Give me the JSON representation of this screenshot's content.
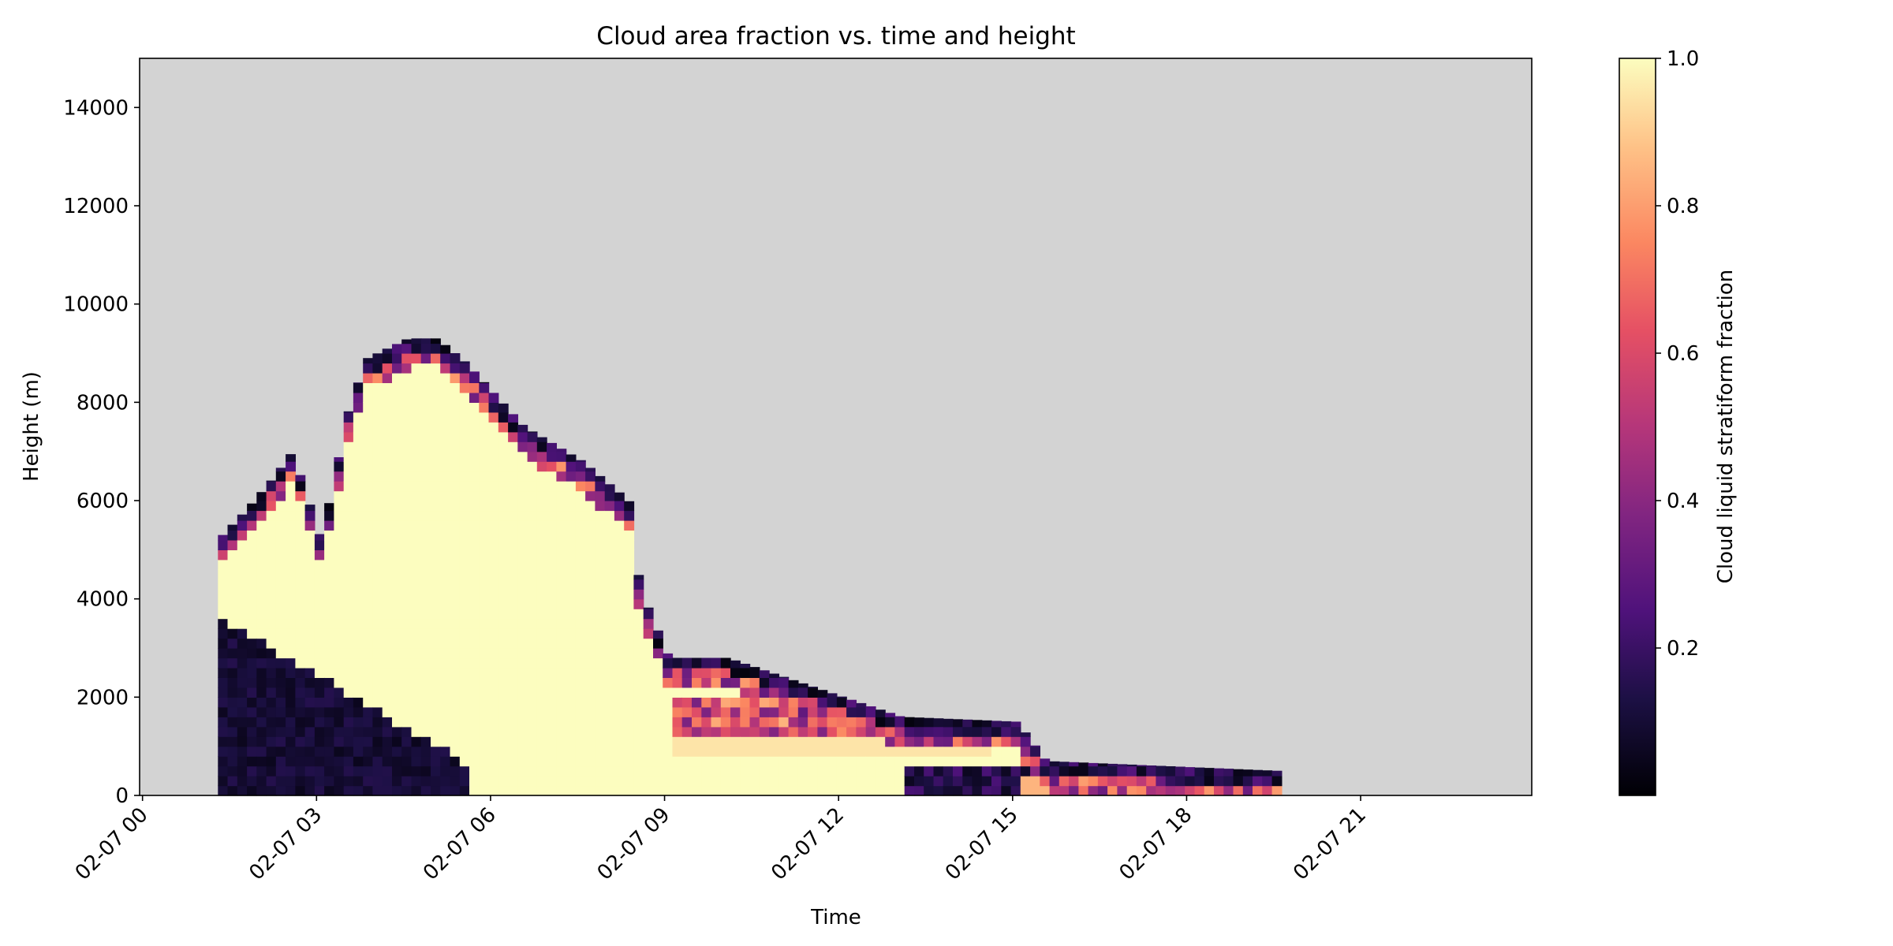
{
  "chart_data": {
    "type": "heatmap",
    "title": "Cloud area fraction vs. time and height",
    "xlabel": "Time",
    "ylabel": "Height (m)",
    "colorbar_label": "Cloud liquid stratiform fraction",
    "colormap": "magma",
    "missing_color": "#d3d3d3",
    "x_ticks": [
      "02-07 00",
      "02-07 03",
      "02-07 06",
      "02-07 09",
      "02-07 12",
      "02-07 15",
      "02-07 18",
      "02-07 21"
    ],
    "x_tick_hours": [
      0,
      3,
      6,
      9,
      12,
      15,
      18,
      21
    ],
    "xlim_hours": [
      -0.05,
      23.95
    ],
    "y_ticks": [
      0,
      2000,
      4000,
      6000,
      8000,
      10000,
      12000,
      14000
    ],
    "ylim": [
      0,
      15000
    ],
    "colorbar_ticks": [
      0.2,
      0.4,
      0.6,
      0.8,
      1.0
    ],
    "colorbar_range": [
      0,
      1
    ],
    "grid": false,
    "cell_hours": 0.1667,
    "cell_height_m": 200,
    "cloud_region": {
      "description_points_hours_vs_top_m": [
        [
          1.3,
          5300
        ],
        [
          1.7,
          5800
        ],
        [
          2.2,
          6500
        ],
        [
          2.5,
          7000
        ],
        [
          3.0,
          5200
        ],
        [
          3.5,
          8000
        ],
        [
          3.8,
          8900
        ],
        [
          4.5,
          9300
        ],
        [
          5.0,
          9300
        ],
        [
          5.5,
          8800
        ],
        [
          6.5,
          7500
        ],
        [
          7.5,
          6800
        ],
        [
          8.3,
          6000
        ],
        [
          8.5,
          4200
        ],
        [
          9.0,
          2800
        ],
        [
          10.0,
          2800
        ],
        [
          11.5,
          2200
        ],
        [
          13.0,
          1600
        ],
        [
          15.0,
          1500
        ],
        [
          15.5,
          700
        ],
        [
          17.5,
          600
        ],
        [
          19.5,
          500
        ]
      ]
    }
  }
}
